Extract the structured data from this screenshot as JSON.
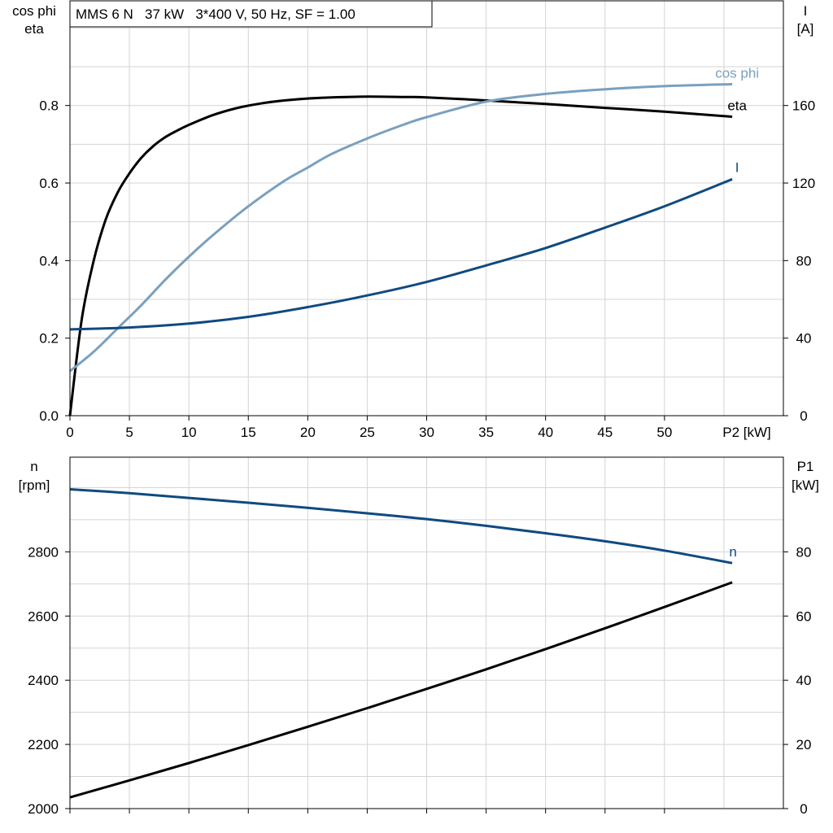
{
  "title": "MMS 6 N   37 kW   3*400 V, 50 Hz, SF = 1.00",
  "colors": {
    "grid": "#d4d4d4",
    "frame": "#000000",
    "eta": "#000000",
    "cosphi": "#7aa0bf",
    "current": "#0f4a80",
    "speed": "#0f4a80",
    "p1": "#000000"
  },
  "chart_data": [
    {
      "type": "line",
      "xlabel": "P2 [kW]",
      "xlim": [
        0,
        60
      ],
      "xticks": [
        0,
        5,
        10,
        15,
        20,
        25,
        30,
        35,
        40,
        45,
        50
      ],
      "left_axis": {
        "label_lines": [
          "cos phi",
          "eta"
        ],
        "ylim": [
          0,
          1.07
        ],
        "ticks": [
          "0.0",
          "0.2",
          "0.4",
          "0.6",
          "0.8"
        ]
      },
      "right_axis": {
        "label_lines": [
          "I",
          "[A]"
        ],
        "ylim": [
          0,
          214
        ],
        "ticks": [
          "0",
          "40",
          "80",
          "120",
          "160"
        ]
      },
      "grid": true,
      "series": [
        {
          "name": "eta",
          "axis": "left",
          "x": [
            0,
            1,
            2,
            3,
            4,
            5,
            6,
            7,
            8,
            9,
            10,
            12,
            14,
            16,
            18,
            20,
            22,
            25,
            28,
            30,
            35,
            40,
            45,
            50,
            55.7
          ],
          "y": [
            0.0,
            0.25,
            0.4,
            0.505,
            0.575,
            0.625,
            0.665,
            0.695,
            0.718,
            0.735,
            0.75,
            0.775,
            0.793,
            0.805,
            0.813,
            0.818,
            0.821,
            0.823,
            0.822,
            0.821,
            0.813,
            0.804,
            0.794,
            0.784,
            0.771
          ]
        },
        {
          "name": "cos phi",
          "axis": "left",
          "x": [
            0,
            2,
            4,
            6,
            8,
            10,
            12,
            15,
            18,
            20,
            22,
            25,
            28,
            30,
            35,
            40,
            45,
            50,
            55.7
          ],
          "y": [
            0.115,
            0.165,
            0.225,
            0.285,
            0.35,
            0.41,
            0.465,
            0.54,
            0.605,
            0.64,
            0.675,
            0.715,
            0.75,
            0.77,
            0.81,
            0.83,
            0.842,
            0.85,
            0.855
          ]
        },
        {
          "name": "I",
          "axis": "right",
          "x": [
            0,
            5,
            10,
            15,
            20,
            25,
            30,
            35,
            40,
            45,
            50,
            55.7
          ],
          "y": [
            44.5,
            45.5,
            47.5,
            51,
            56,
            62,
            69,
            77.5,
            86.5,
            97,
            108,
            122
          ]
        }
      ]
    },
    {
      "type": "line",
      "xlim": [
        0,
        60
      ],
      "xticks": [
        0,
        5,
        10,
        15,
        20,
        25,
        30,
        35,
        40,
        45,
        50
      ],
      "left_axis": {
        "label_lines": [
          "n",
          "[rpm]"
        ],
        "ylim": [
          2000,
          3095
        ],
        "ticks": [
          "2000",
          "2200",
          "2400",
          "2600",
          "2800"
        ]
      },
      "right_axis": {
        "label_lines": [
          "P1",
          "[kW]"
        ],
        "ylim": [
          0,
          109.5
        ],
        "ticks": [
          "0",
          "20",
          "40",
          "60",
          "80"
        ]
      },
      "grid": true,
      "series": [
        {
          "name": "n",
          "axis": "left",
          "x": [
            0,
            5,
            10,
            15,
            20,
            25,
            30,
            35,
            40,
            45,
            50,
            55.7
          ],
          "y": [
            2995,
            2983,
            2968,
            2953,
            2937,
            2920,
            2902,
            2881,
            2858,
            2833,
            2804,
            2765
          ]
        },
        {
          "name": "",
          "axis": "right",
          "x": [
            0,
            5,
            10,
            15,
            20,
            25,
            30,
            35,
            40,
            45,
            50,
            55.7
          ],
          "y": [
            3.5,
            8.8,
            14.2,
            19.8,
            25.5,
            31.3,
            37.3,
            43.4,
            49.7,
            56.2,
            62.8,
            70.5
          ]
        }
      ]
    }
  ]
}
